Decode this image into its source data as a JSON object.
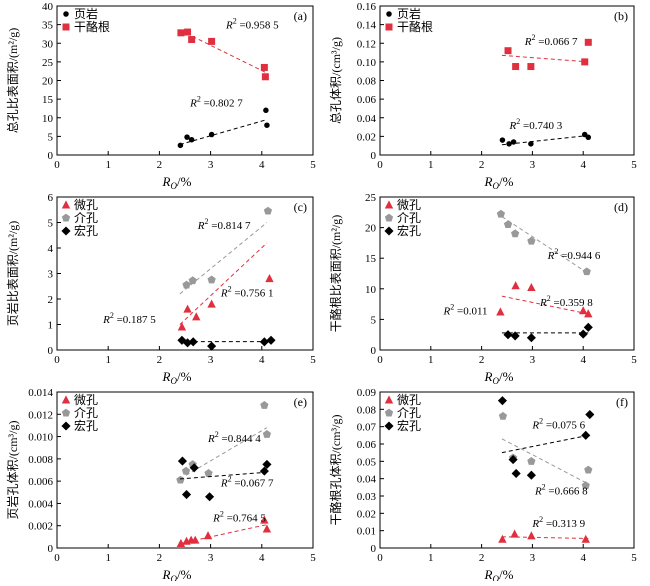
{
  "colors": {
    "shale": "#000000",
    "kerogen": "#e03040",
    "micro": "#e03040",
    "meso": "#999999",
    "macro": "#000000"
  },
  "chart_data": [
    {
      "type": "scatter",
      "panel": "(a)",
      "ylabel": "总孔比表面积/(m²/g)",
      "xlabel_main": "R",
      "xlabel_sub": "O",
      "xlabel_unit": "/%",
      "xlim": [
        0,
        5
      ],
      "ylim": [
        0,
        40
      ],
      "xticks": [
        "0",
        "1",
        "2",
        "3",
        "4",
        "5"
      ],
      "yticks": [
        "0",
        "5",
        "10",
        "15",
        "20",
        "25",
        "30",
        "35",
        "40"
      ],
      "legend_position": "top-left",
      "series": [
        {
          "name": "页岩",
          "marker": "circle",
          "color": "#000000",
          "x": [
            2.41,
            2.54,
            2.63,
            3.02,
            4.08,
            4.1
          ],
          "y": [
            2.6,
            4.8,
            4.1,
            5.5,
            12.0,
            8.0
          ],
          "trend_x": [
            2.4,
            4.1
          ],
          "trend_y": [
            2.8,
            9.5
          ],
          "r2": "R² =0.802 7",
          "r2_anchor": [
            2.6,
            13.0
          ]
        },
        {
          "name": "干酪根",
          "marker": "square",
          "color": "#e03040",
          "x": [
            2.42,
            2.55,
            2.63,
            3.02,
            4.05,
            4.07
          ],
          "y": [
            32.8,
            33.0,
            31.0,
            30.5,
            23.5,
            21.0
          ],
          "trend_x": [
            2.4,
            4.1
          ],
          "trend_y": [
            33.5,
            22.0
          ],
          "r2": "R² =0.958 5",
          "r2_anchor": [
            3.3,
            34.0
          ]
        }
      ]
    },
    {
      "type": "scatter",
      "panel": "(b)",
      "ylabel": "总孔体积/(cm³/g)",
      "xlabel_main": "R",
      "xlabel_sub": "O",
      "xlabel_unit": "/%",
      "xlim": [
        0,
        5
      ],
      "ylim": [
        0,
        0.16
      ],
      "xticks": [
        "0",
        "1",
        "2",
        "3",
        "4",
        "5"
      ],
      "yticks": [
        "0",
        "0.02",
        "0.04",
        "0.06",
        "0.08",
        "0.10",
        "0.12",
        "0.14",
        "0.16"
      ],
      "legend_position": "top-left",
      "series": [
        {
          "name": "页岩",
          "marker": "circle",
          "color": "#000000",
          "x": [
            2.41,
            2.54,
            2.63,
            2.97,
            4.03,
            4.1
          ],
          "y": [
            0.016,
            0.012,
            0.014,
            0.012,
            0.022,
            0.019
          ],
          "trend_x": [
            2.4,
            4.1
          ],
          "trend_y": [
            0.011,
            0.021
          ],
          "r2": "R² =0.740 3",
          "r2_anchor": [
            2.55,
            0.028
          ]
        },
        {
          "name": "干酪根",
          "marker": "square",
          "color": "#e03040",
          "x": [
            2.52,
            2.67,
            2.97,
            4.03,
            4.1
          ],
          "y": [
            0.112,
            0.095,
            0.095,
            0.1,
            0.121
          ],
          "trend_x": [
            2.4,
            4.1
          ],
          "trend_y": [
            0.107,
            0.1
          ],
          "r2": "R² =0.066 7",
          "r2_anchor": [
            2.85,
            0.118
          ]
        }
      ]
    },
    {
      "type": "scatter",
      "panel": "(c)",
      "ylabel": "页岩比表面积/(m²/g)",
      "xlabel_main": "R",
      "xlabel_sub": "O",
      "xlabel_unit": "/%",
      "xlim": [
        0,
        5
      ],
      "ylim": [
        0,
        6
      ],
      "xticks": [
        "0",
        "1",
        "2",
        "3",
        "4",
        "5"
      ],
      "yticks": [
        "0",
        "1",
        "2",
        "3",
        "4",
        "5",
        "6"
      ],
      "legend_position": "top-left",
      "series": [
        {
          "name": "微孔",
          "marker": "triangle",
          "color": "#e03040",
          "x": [
            2.44,
            2.55,
            2.72,
            3.02,
            4.15
          ],
          "y": [
            0.9,
            1.6,
            1.3,
            1.8,
            2.8
          ],
          "trend_x": [
            2.4,
            4.1
          ],
          "trend_y": [
            1.0,
            4.2
          ],
          "r2": "R² =0.756 1",
          "r2_anchor": [
            3.2,
            2.1
          ]
        },
        {
          "name": "介孔",
          "marker": "pentagon",
          "color": "#999999",
          "x": [
            2.53,
            2.65,
            3.02,
            4.12
          ],
          "y": [
            2.55,
            2.72,
            2.75,
            5.45
          ],
          "trend_x": [
            2.4,
            4.1
          ],
          "trend_y": [
            2.2,
            5.0
          ],
          "r2": "R² =0.814 7",
          "r2_anchor": [
            2.75,
            4.75
          ]
        },
        {
          "name": "宏孔",
          "marker": "diamond",
          "color": "#000000",
          "x": [
            2.44,
            2.55,
            2.66,
            3.02,
            4.05,
            4.18
          ],
          "y": [
            0.38,
            0.28,
            0.32,
            0.15,
            0.32,
            0.38
          ],
          "trend_x": [
            2.4,
            4.1
          ],
          "trend_y": [
            0.33,
            0.33
          ],
          "r2": "R² =0.187 5",
          "r2_anchor": [
            0.9,
            1.05
          ]
        }
      ]
    },
    {
      "type": "scatter",
      "panel": "(d)",
      "ylabel": "干酪根比表面积/(m²/g)",
      "xlabel_main": "R",
      "xlabel_sub": "O",
      "xlabel_unit": "/%",
      "xlim": [
        0,
        5
      ],
      "ylim": [
        0,
        25
      ],
      "xticks": [
        "0",
        "1",
        "2",
        "3",
        "4",
        "5"
      ],
      "yticks": [
        "0",
        "5",
        "10",
        "15",
        "20",
        "25"
      ],
      "legend_position": "top-left",
      "series": [
        {
          "name": "微孔",
          "marker": "triangle",
          "color": "#e03040",
          "x": [
            2.37,
            2.67,
            2.98,
            4.0,
            4.1
          ],
          "y": [
            6.2,
            10.5,
            10.2,
            6.4,
            5.9
          ],
          "trend_x": [
            2.4,
            4.1
          ],
          "trend_y": [
            8.8,
            5.9
          ],
          "r2": "R² =0.359 8",
          "r2_anchor": [
            3.15,
            7.2
          ]
        },
        {
          "name": "介孔",
          "marker": "pentagon",
          "color": "#999999",
          "x": [
            2.38,
            2.52,
            2.66,
            2.98,
            4.07
          ],
          "y": [
            22.2,
            20.5,
            19.0,
            17.8,
            12.8
          ],
          "trend_x": [
            2.4,
            4.1
          ],
          "trend_y": [
            21.8,
            12.5
          ],
          "r2": "R² =0.944 6",
          "r2_anchor": [
            3.3,
            14.9
          ]
        },
        {
          "name": "宏孔",
          "marker": "diamond",
          "color": "#000000",
          "x": [
            2.52,
            2.66,
            2.98,
            4.0,
            4.1
          ],
          "y": [
            2.5,
            2.3,
            2.0,
            2.6,
            3.7
          ],
          "trend_x": [
            2.4,
            4.1
          ],
          "trend_y": [
            2.8,
            2.8
          ],
          "r2": "R² =0.011",
          "r2_anchor": [
            1.25,
            5.8
          ]
        }
      ]
    },
    {
      "type": "scatter",
      "panel": "(e)",
      "ylabel": "页岩孔体积/(cm³/g)",
      "xlabel_main": "R",
      "xlabel_sub": "O",
      "xlabel_unit": "/%",
      "xlim": [
        0,
        5
      ],
      "ylim": [
        0,
        0.014
      ],
      "xticks": [
        "0",
        "1",
        "2",
        "3",
        "4",
        "5"
      ],
      "yticks": [
        "0",
        "0.002",
        "0.004",
        "0.006",
        "0.008",
        "0.010",
        "0.012",
        "0.014"
      ],
      "legend_position": "top-left",
      "series": [
        {
          "name": "微孔",
          "marker": "triangle",
          "color": "#e03040",
          "x": [
            2.42,
            2.53,
            2.62,
            2.7,
            2.95,
            4.05,
            4.1
          ],
          "y": [
            0.0004,
            0.0006,
            0.0007,
            0.0007,
            0.0011,
            0.0025,
            0.0017
          ],
          "trend_x": [
            2.4,
            4.1
          ],
          "trend_y": [
            0.0004,
            0.0021
          ],
          "r2": "R² =0.764 5",
          "r2_anchor": [
            3.05,
            0.0024
          ]
        },
        {
          "name": "介孔",
          "marker": "pentagon",
          "color": "#999999",
          "x": [
            2.41,
            2.52,
            2.65,
            2.96,
            4.05,
            4.1
          ],
          "y": [
            0.0061,
            0.0069,
            0.0075,
            0.0067,
            0.0128,
            0.0102
          ],
          "trend_x": [
            2.4,
            4.1
          ],
          "trend_y": [
            0.0062,
            0.0108
          ],
          "r2": "R² =0.844 4",
          "r2_anchor": [
            2.95,
            0.0095
          ]
        },
        {
          "name": "宏孔",
          "marker": "diamond",
          "color": "#000000",
          "x": [
            2.45,
            2.53,
            2.68,
            2.98,
            4.05,
            4.1
          ],
          "y": [
            0.0078,
            0.0048,
            0.0072,
            0.0046,
            0.0069,
            0.0075
          ],
          "trend_x": [
            2.4,
            4.1
          ],
          "trend_y": [
            0.0062,
            0.0068
          ],
          "r2": "R² =0.067 7",
          "r2_anchor": [
            3.2,
            0.0055
          ]
        }
      ]
    },
    {
      "type": "scatter",
      "panel": "(f)",
      "ylabel": "干酪根孔体积/(cm³/g)",
      "xlabel_main": "R",
      "xlabel_sub": "O",
      "xlabel_unit": "/%",
      "xlim": [
        0,
        5
      ],
      "ylim": [
        0,
        0.09
      ],
      "xticks": [
        "0",
        "1",
        "2",
        "3",
        "4",
        "5"
      ],
      "yticks": [
        "0",
        "0.01",
        "0.02",
        "0.03",
        "0.04",
        "0.05",
        "0.06",
        "0.07",
        "0.08",
        "0.09"
      ],
      "legend_position": "top-left",
      "series": [
        {
          "name": "微孔",
          "marker": "triangle",
          "color": "#e03040",
          "x": [
            2.41,
            2.65,
            2.98,
            4.05
          ],
          "y": [
            0.005,
            0.008,
            0.007,
            0.005
          ],
          "trend_x": [
            2.4,
            4.1
          ],
          "trend_y": [
            0.0065,
            0.0055
          ],
          "r2": "R² =0.313 9",
          "r2_anchor": [
            3.0,
            0.012
          ]
        },
        {
          "name": "介孔",
          "marker": "pentagon",
          "color": "#999999",
          "x": [
            2.42,
            2.62,
            2.98,
            4.05,
            4.1
          ],
          "y": [
            0.076,
            0.052,
            0.05,
            0.036,
            0.045
          ],
          "trend_x": [
            2.4,
            4.1
          ],
          "trend_y": [
            0.063,
            0.037
          ],
          "r2": "R² =0.666 8",
          "r2_anchor": [
            3.05,
            0.031
          ]
        },
        {
          "name": "宏孔",
          "marker": "diamond",
          "color": "#000000",
          "x": [
            2.41,
            2.62,
            2.68,
            2.98,
            4.05,
            4.13
          ],
          "y": [
            0.085,
            0.051,
            0.043,
            0.042,
            0.065,
            0.077
          ],
          "trend_x": [
            2.4,
            4.1
          ],
          "trend_y": [
            0.055,
            0.065
          ],
          "r2": "R² =0.075 6",
          "r2_anchor": [
            3.0,
            0.069
          ]
        }
      ]
    }
  ]
}
